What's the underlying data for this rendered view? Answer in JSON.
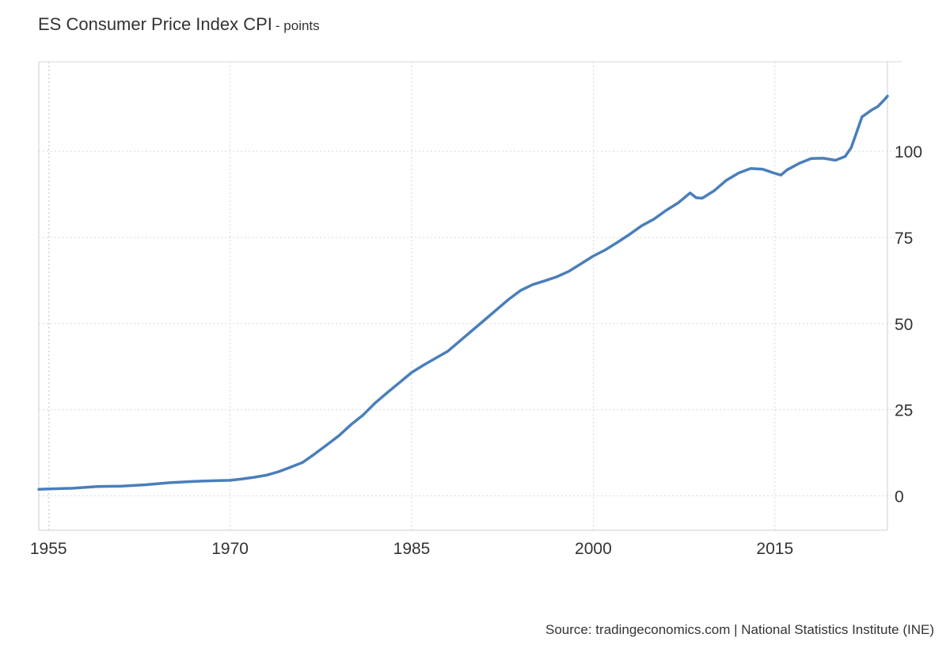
{
  "header": {
    "title": "ES Consumer Price Index CPI",
    "unit": "- points"
  },
  "footer": {
    "source": "Source: tradingeconomics.com | National Statistics Institute (INE)"
  },
  "colors": {
    "line": "#4a7ebb",
    "grid": "#d9d9d9",
    "axis": "#cccccc",
    "text": "#333333"
  },
  "chart_data": {
    "type": "line",
    "title": "ES Consumer Price Index CPI",
    "subtitle": "- points",
    "xlabel": "",
    "ylabel": "",
    "x_ticks": [
      "1955",
      "1970",
      "1985",
      "2000",
      "2015"
    ],
    "y_ticks": [
      "0",
      "25",
      "50",
      "75",
      "100"
    ],
    "xlim": [
      1954.2,
      2024.3
    ],
    "ylim": [
      -10,
      126
    ],
    "grid": true,
    "y_axis_position": "right",
    "series": [
      {
        "x": [
          1954.2,
          1955,
          1957,
          1959,
          1961,
          1963,
          1965,
          1967,
          1969,
          1970,
          1971,
          1972,
          1973,
          1974,
          1975,
          1976,
          1977,
          1978,
          1979,
          1980,
          1981,
          1982,
          1983,
          1984,
          1985,
          1986,
          1987,
          1988,
          1989,
          1990,
          1991,
          1992,
          1993,
          1994,
          1995,
          1996,
          1997,
          1998,
          1999,
          2000,
          2001,
          2002,
          2003,
          2004,
          2005,
          2006,
          2007,
          2008,
          2008.5,
          2009,
          2009.5,
          2010,
          2011,
          2012,
          2013,
          2014,
          2015,
          2015.5,
          2016,
          2017,
          2018,
          2019,
          2020,
          2020.8,
          2021.3,
          2021.8,
          2022.2,
          2022.6,
          2023,
          2023.5,
          2024,
          2024.3
        ],
        "y": [
          1.9,
          2.0,
          2.2,
          2.7,
          2.8,
          3.2,
          3.8,
          4.2,
          4.4,
          4.5,
          4.9,
          5.4,
          6.0,
          7.0,
          8.3,
          9.7,
          12.2,
          14.8,
          17.5,
          20.7,
          23.5,
          27.0,
          30.0,
          32.9,
          35.8,
          38.0,
          40.0,
          42.0,
          45.0,
          48.0,
          51.0,
          54.0,
          57.0,
          59.6,
          61.3,
          62.4,
          63.6,
          65.2,
          67.4,
          69.6,
          71.4,
          73.6,
          75.9,
          78.4,
          80.3,
          82.8,
          85.0,
          87.9,
          86.5,
          86.4,
          87.5,
          88.6,
          91.6,
          93.7,
          95.0,
          94.8,
          93.6,
          93.1,
          94.6,
          96.5,
          97.9,
          98.0,
          97.4,
          98.5,
          101.0,
          106.0,
          110.0,
          111.0,
          112.0,
          113.0,
          114.8,
          116.0
        ]
      }
    ]
  }
}
